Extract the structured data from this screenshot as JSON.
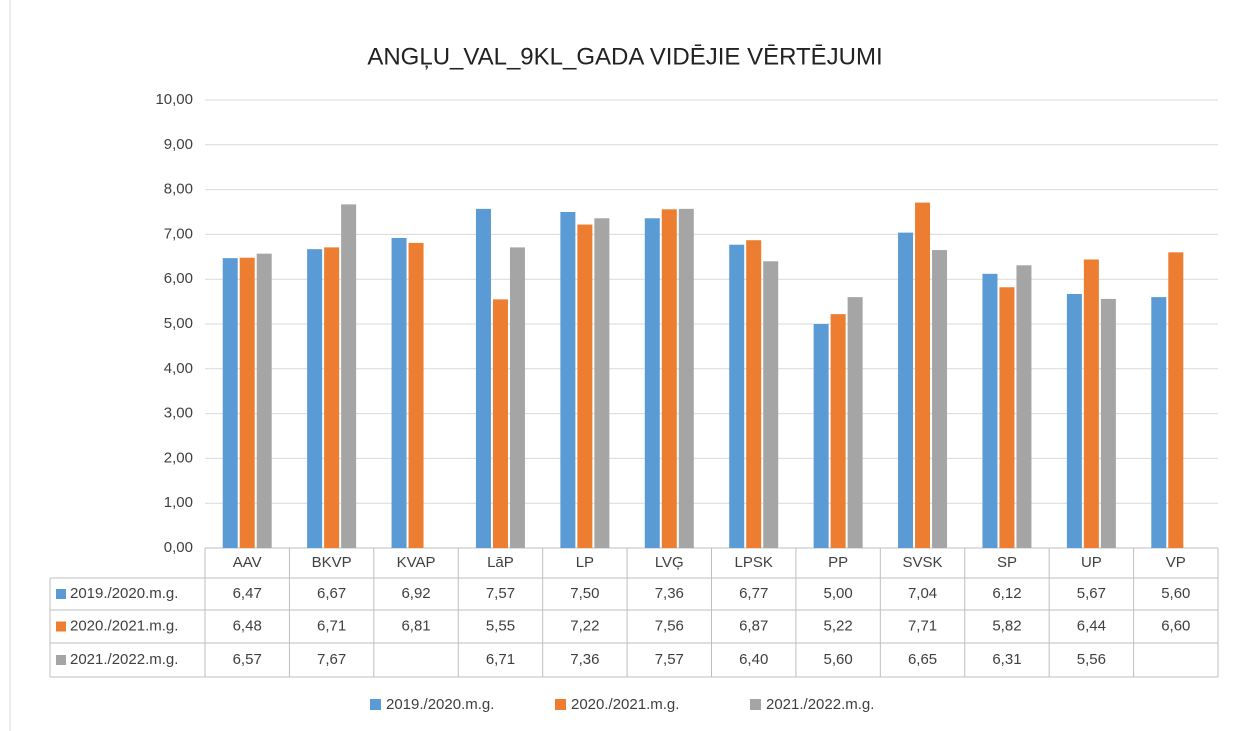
{
  "chart_data": {
    "type": "bar",
    "title": "ANGĻU_VAL_9KL_GADA VIDĒJIE VĒRTĒJUMI",
    "categories": [
      "AAV",
      "BKVP",
      "KVAP",
      "LāP",
      "LP",
      "LVĢ",
      "LPSK",
      "PP",
      "SVSK",
      "SP",
      "UP",
      "VP"
    ],
    "series": [
      {
        "name": "2019./2020.m.g.",
        "color": "#5b9bd5",
        "values": [
          6.47,
          6.67,
          6.92,
          7.57,
          7.5,
          7.36,
          6.77,
          5.0,
          7.04,
          6.12,
          5.67,
          5.6
        ],
        "value_labels": [
          "6,47",
          "6,67",
          "6,92",
          "7,57",
          "7,50",
          "7,36",
          "6,77",
          "5,00",
          "7,04",
          "6,12",
          "5,67",
          "5,60"
        ]
      },
      {
        "name": "2020./2021.m.g.",
        "color": "#ed7d31",
        "values": [
          6.48,
          6.71,
          6.81,
          5.55,
          7.22,
          7.56,
          6.87,
          5.22,
          7.71,
          5.82,
          6.44,
          6.6
        ],
        "value_labels": [
          "6,48",
          "6,71",
          "6,81",
          "5,55",
          "7,22",
          "7,56",
          "6,87",
          "5,22",
          "7,71",
          "5,82",
          "6,44",
          "6,60"
        ]
      },
      {
        "name": "2021./2022.m.g.",
        "color": "#a5a5a5",
        "values": [
          6.57,
          7.67,
          null,
          6.71,
          7.36,
          7.57,
          6.4,
          5.6,
          6.65,
          6.31,
          5.56,
          null
        ],
        "value_labels": [
          "6,57",
          "7,67",
          null,
          "6,71",
          "7,36",
          "7,57",
          "6,40",
          "5,60",
          "6,65",
          "6,31",
          "5,56",
          null
        ]
      }
    ],
    "ylim": [
      0,
      10
    ],
    "yticks": [
      {
        "value": 0,
        "label": "0,00"
      },
      {
        "value": 1,
        "label": "1,00"
      },
      {
        "value": 2,
        "label": "2,00"
      },
      {
        "value": 3,
        "label": "3,00"
      },
      {
        "value": 4,
        "label": "4,00"
      },
      {
        "value": 5,
        "label": "5,00"
      },
      {
        "value": 6,
        "label": "6,00"
      },
      {
        "value": 7,
        "label": "7,00"
      },
      {
        "value": 8,
        "label": "8,00"
      },
      {
        "value": 9,
        "label": "9,00"
      },
      {
        "value": 10,
        "label": "10,00"
      }
    ],
    "grid": true,
    "legend": "bottom"
  }
}
